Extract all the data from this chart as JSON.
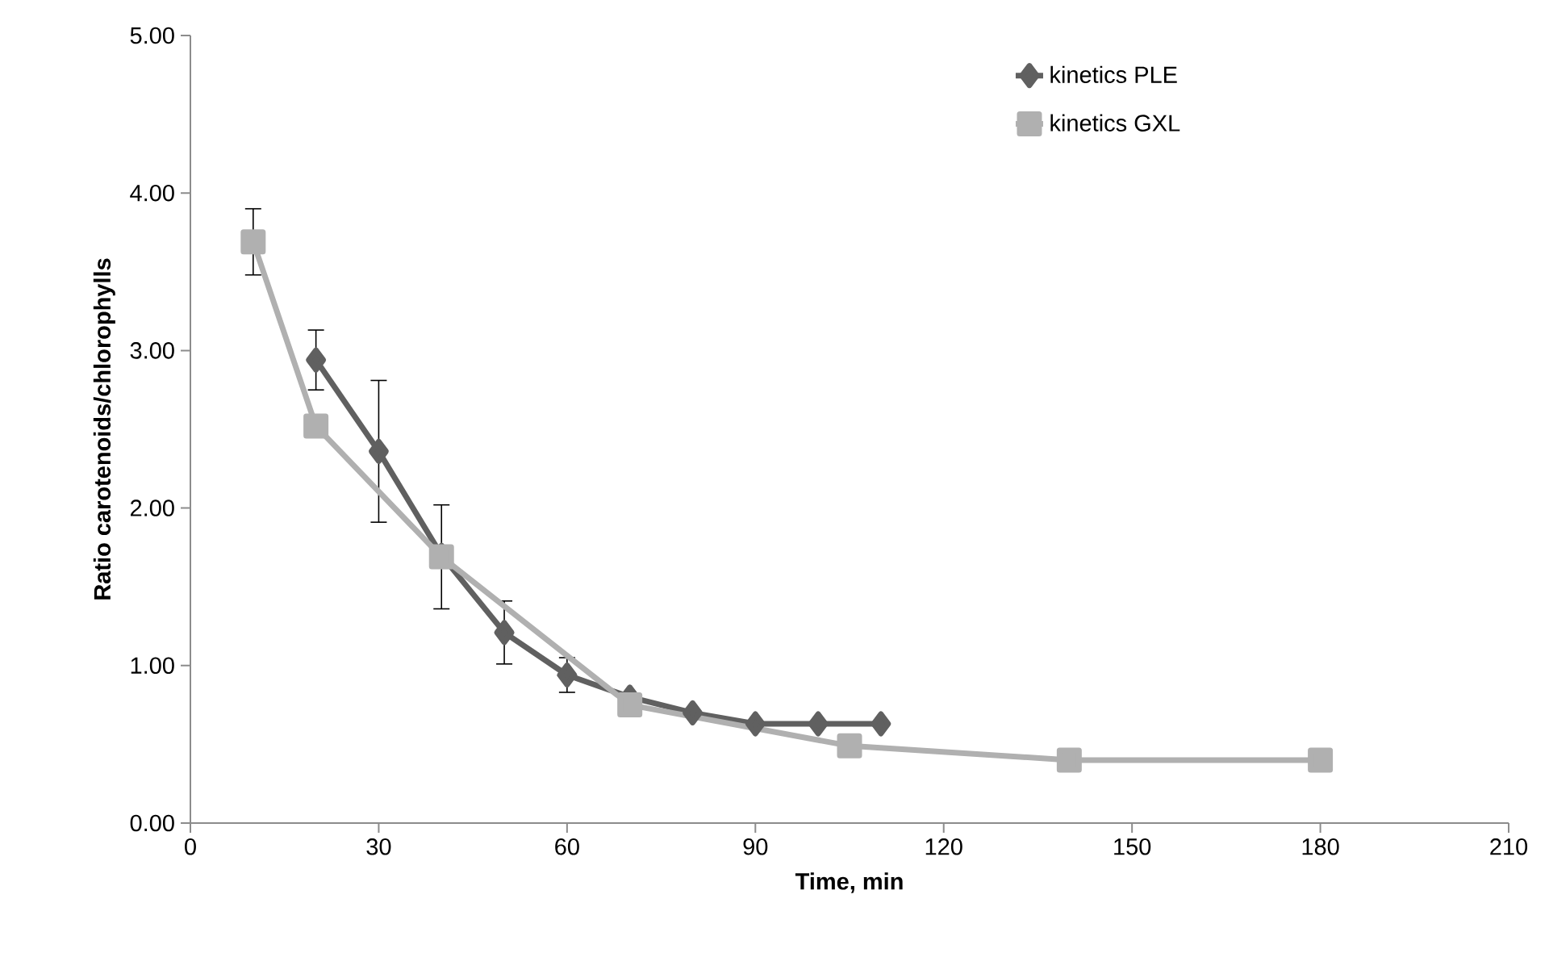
{
  "chart_data": {
    "type": "line",
    "xlabel": "Time, min",
    "ylabel": "Ratio carotenoids/chlorophylls",
    "xlim": [
      0,
      210
    ],
    "xticks": [
      0,
      30,
      60,
      90,
      120,
      150,
      180,
      210
    ],
    "ylim": [
      0,
      5
    ],
    "yticks": [
      {
        "value": 0,
        "label": "0.00"
      },
      {
        "value": 1,
        "label": "1.00"
      },
      {
        "value": 2,
        "label": "2.00"
      },
      {
        "value": 3,
        "label": "3.00"
      },
      {
        "value": 4,
        "label": "4.00"
      },
      {
        "value": 5,
        "label": "5.00"
      }
    ],
    "grid": false,
    "legend": "top right",
    "series": [
      {
        "name": "kinetics PLE",
        "color": "#606060",
        "marker": "diamond",
        "x": [
          20,
          30,
          40,
          50,
          60,
          70,
          80,
          90,
          100,
          110
        ],
        "values": [
          2.94,
          2.36,
          1.7,
          1.21,
          0.94,
          0.8,
          0.7,
          0.63,
          0.63,
          0.63
        ],
        "errors": [
          0.19,
          0.45,
          null,
          0.2,
          0.11,
          null,
          null,
          null,
          null,
          null
        ]
      },
      {
        "name": "kinetics GXL",
        "color": "#b0b0b0",
        "marker": "square",
        "x": [
          10,
          20,
          40,
          70,
          105,
          140,
          180
        ],
        "values": [
          3.69,
          2.52,
          1.69,
          0.75,
          0.49,
          0.4,
          0.4
        ],
        "errors": [
          0.21,
          null,
          0.33,
          null,
          null,
          null,
          null
        ]
      }
    ]
  }
}
